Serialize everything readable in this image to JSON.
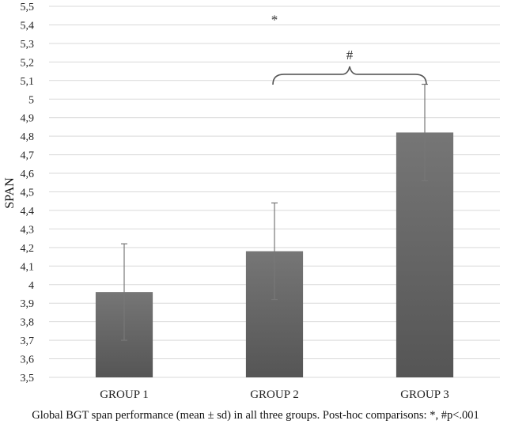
{
  "chart_data": {
    "type": "bar",
    "categories": [
      "GROUP 1",
      "GROUP 2",
      "GROUP 3"
    ],
    "series": [
      {
        "values": [
          3.96,
          4.18,
          4.82
        ],
        "error": [
          0.26,
          0.26,
          0.26
        ]
      }
    ],
    "ylabel": "SPAN",
    "xlabel": "",
    "ylim": [
      3.5,
      5.5
    ],
    "ytick_step": 0.1,
    "ytick_labels": [
      "3,5",
      "3,6",
      "3,7",
      "3,8",
      "3,9",
      "4",
      "4,1",
      "4,2",
      "4,3",
      "4,4",
      "4,5",
      "4,6",
      "4,7",
      "4,8",
      "4,9",
      "5",
      "5,1",
      "5,2",
      "5,3",
      "5,4",
      "5,5"
    ],
    "grid": true,
    "legend": "none",
    "annotations": [
      {
        "text": "*",
        "between": [
          "GROUP 1",
          "GROUP 3"
        ],
        "y": 5.43
      },
      {
        "text": "#",
        "between": [
          "GROUP 2",
          "GROUP 3"
        ],
        "y": 5.24
      }
    ],
    "colors": {
      "bar": "#5c5c5c",
      "bar_gradient_top": "#767676",
      "bar_gradient_bottom": "#555555",
      "grid": "#d9d9d9",
      "error": "#777777"
    }
  },
  "caption": "Global BGT span performance (mean ± sd) in all three groups. Post-hoc comparisons: *, #p<.001"
}
